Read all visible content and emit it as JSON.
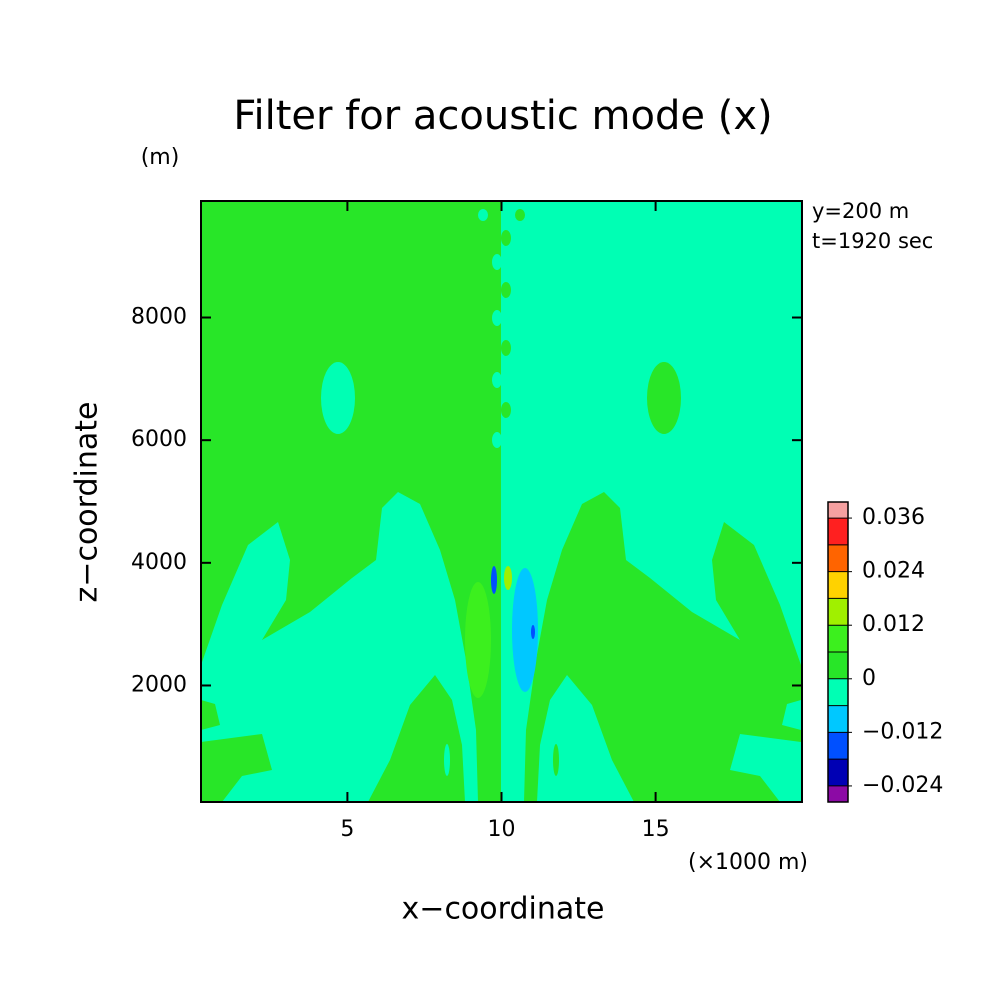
{
  "chart_data": {
    "type": "contour",
    "title": "Filter for acoustic mode (x)",
    "xlabel": "x−coordinate",
    "ylabel": "z−coordinate",
    "xunit": "(×1000 m)",
    "yunit": "(m)",
    "annotations": [
      "y=200 m",
      "t=1920 sec"
    ],
    "xlim": [
      0.25,
      19.75
    ],
    "xticks": [
      5,
      10,
      15
    ],
    "ylim": [
      100,
      9900
    ],
    "yticks": [
      2000,
      4000,
      6000,
      8000
    ],
    "colorbar": {
      "clim": [
        -0.0276,
        0.0396
      ],
      "levels": [
        -0.024,
        -0.018,
        -0.012,
        -0.006,
        0,
        0.006,
        0.012,
        0.018,
        0.024,
        0.03,
        0.036
      ],
      "colors": [
        "#8c0aa5",
        "#0000b4",
        "#0050ff",
        "#00c8ff",
        "#00ffb4",
        "#28e628",
        "#3cf01e",
        "#a0f000",
        "#ffd200",
        "#ff6400",
        "#ff2020",
        "#f5a0a0"
      ],
      "ticks": [
        0.036,
        0.024,
        0.012,
        0,
        {
          "value": -0.012,
          "label": "−0.012"
        },
        {
          "value": -0.024,
          "label": "−0.024"
        }
      ]
    }
  }
}
